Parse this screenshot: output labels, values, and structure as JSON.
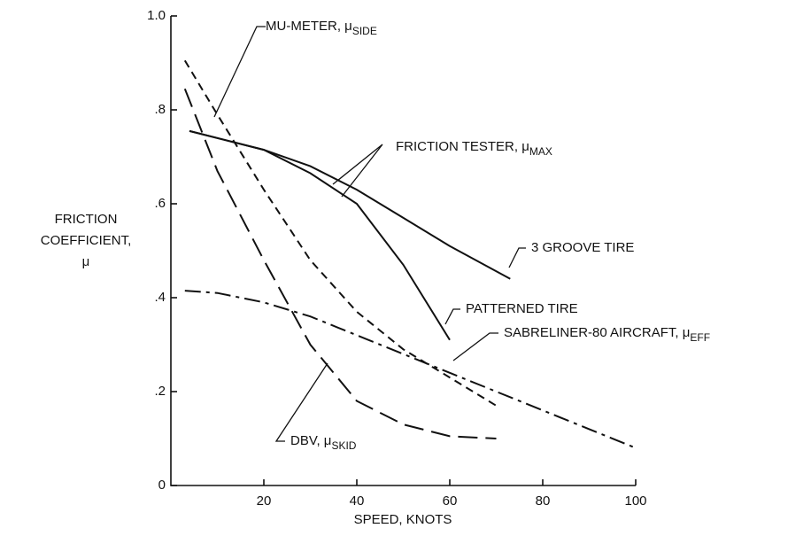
{
  "chart_data": {
    "type": "line",
    "xlabel": "SPEED, KNOTS",
    "ylabel": [
      "FRICTION",
      "COEFFICIENT,",
      "μ"
    ],
    "xlim": [
      0,
      100
    ],
    "xticks": [
      20,
      40,
      60,
      80,
      100
    ],
    "ylim": [
      0,
      1
    ],
    "yticks": [
      0,
      {
        "value": 0.2,
        "label": ".2"
      },
      {
        "value": 0.4,
        "label": ".4"
      },
      {
        "value": 0.6,
        "label": ".6"
      },
      {
        "value": 0.8,
        "label": ".8"
      },
      {
        "value": 1.0,
        "label": "1.0"
      }
    ],
    "annotation": {
      "text": "FRICTION TESTER, μ",
      "sub": "MAX"
    },
    "series": [
      {
        "name": "3 GROOVE TIRE",
        "color": "#111111",
        "style": "solid",
        "x": [
          4,
          20,
          30,
          40,
          50,
          60,
          73
        ],
        "values": [
          0.755,
          0.715,
          0.68,
          0.63,
          0.57,
          0.51,
          0.44
        ]
      },
      {
        "name": "PATTERNED TIRE",
        "color": "#111111",
        "style": "solid",
        "x": [
          4,
          20,
          30,
          40,
          50,
          60
        ],
        "values": [
          0.755,
          0.715,
          0.665,
          0.6,
          0.47,
          0.31
        ]
      },
      {
        "name": "MU-METER, μ",
        "sub": "SIDE",
        "color": "#111111",
        "style": "dashed",
        "x": [
          3,
          10,
          20,
          30,
          40,
          50,
          60,
          70
        ],
        "values": [
          0.905,
          0.79,
          0.63,
          0.48,
          0.37,
          0.29,
          0.23,
          0.17
        ]
      },
      {
        "name": "DBV, μ",
        "sub": "SKID",
        "color": "#111111",
        "style": "longdash",
        "x": [
          3,
          10,
          20,
          30,
          40,
          50,
          60,
          70
        ],
        "values": [
          0.845,
          0.67,
          0.48,
          0.3,
          0.18,
          0.13,
          0.105,
          0.1
        ]
      },
      {
        "name": "SABRELINER-80 AIRCRAFT, μ",
        "sub": "EFF",
        "color": "#111111",
        "style": "dashdot",
        "x": [
          3,
          10,
          20,
          30,
          40,
          50,
          60,
          70,
          80,
          90,
          100
        ],
        "values": [
          0.415,
          0.41,
          0.39,
          0.36,
          0.32,
          0.28,
          0.24,
          0.2,
          0.16,
          0.12,
          0.08
        ]
      }
    ]
  }
}
